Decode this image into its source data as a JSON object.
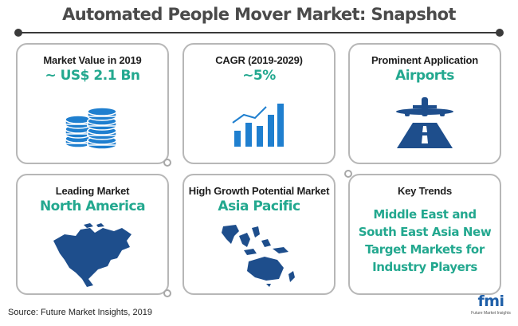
{
  "title": "Automated People Mover Market: Snapshot",
  "colors": {
    "accent": "#23a88f",
    "icon_blue": "#1f7fcf",
    "dark_icon": "#1e4e8c",
    "border": "#b7b7b7"
  },
  "cards": {
    "market_value": {
      "label": "Market Value in 2019",
      "value": "~ US$ 2.1 Bn",
      "icon": "coin-stack-icon"
    },
    "cagr": {
      "label": "CAGR (2019-2029)",
      "value": "~5%",
      "icon": "bar-chart-icon"
    },
    "application": {
      "label": "Prominent Application",
      "value": "Airports",
      "icon": "airplane-runway-icon"
    },
    "leading_market": {
      "label": "Leading Market",
      "value": "North America",
      "icon": "north-america-map-icon"
    },
    "growth_market": {
      "label": "High Growth Potential Market",
      "value": "Asia Pacific",
      "icon": "asia-pacific-map-icon"
    },
    "key_trends": {
      "label": "Key Trends",
      "value": "Middle East and South East Asia New Target Markets for Industry Players"
    }
  },
  "source": "Source: Future Market Insights, 2019",
  "logo": {
    "text": "fmi",
    "subtext": "Future Market Insights"
  }
}
